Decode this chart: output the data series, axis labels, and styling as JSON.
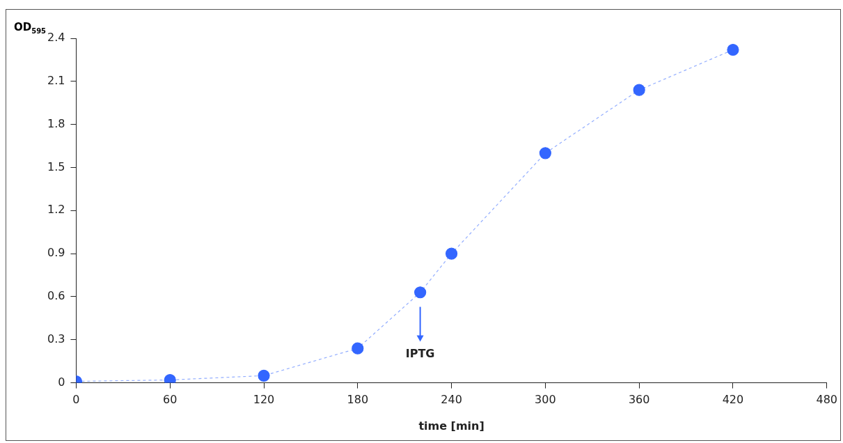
{
  "chart_data": {
    "type": "line",
    "xlabel": "time [min]",
    "ylabel": "OD$_{595}$",
    "x": [
      0,
      60,
      120,
      180,
      220,
      240,
      300,
      360,
      420
    ],
    "series": [
      {
        "color": "#3366ff",
        "values": [
          0.01,
          0.02,
          0.05,
          0.24,
          0.63,
          0.9,
          1.6,
          2.04,
          2.32
        ]
      }
    ],
    "xlim": [
      0,
      480
    ],
    "xticks": [
      0,
      60,
      120,
      180,
      240,
      300,
      360,
      420,
      480
    ],
    "ylim": [
      0,
      2.4
    ],
    "yticks": [
      0,
      0.3,
      0.6,
      0.9,
      1.2,
      1.5,
      1.8,
      2.1,
      2.4
    ],
    "marker": "circle",
    "line_style": "dashed",
    "grid": false,
    "legend": false,
    "annotations": [
      "IPTG"
    ]
  }
}
